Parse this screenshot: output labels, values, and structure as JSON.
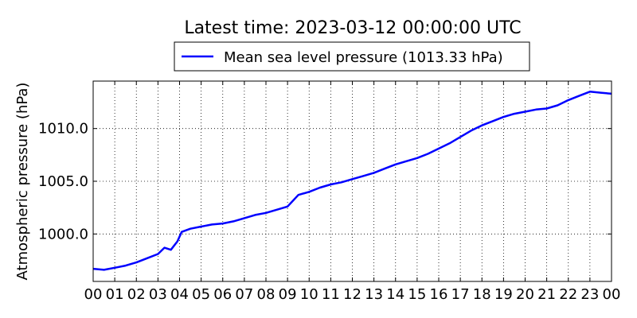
{
  "chart_data": {
    "type": "line",
    "title": "Latest time: 2023-03-12 00:00:00 UTC",
    "ylabel": "Atmospheric pressure (hPa)",
    "xlabel": "",
    "xlim": [
      0,
      24
    ],
    "ylim": [
      995.5,
      1014.5
    ],
    "grid": true,
    "legend_position": "top-center",
    "x_ticks": [
      "00",
      "01",
      "02",
      "03",
      "04",
      "05",
      "06",
      "07",
      "08",
      "09",
      "10",
      "11",
      "12",
      "13",
      "14",
      "15",
      "16",
      "17",
      "18",
      "19",
      "20",
      "21",
      "22",
      "23",
      "00"
    ],
    "y_ticks": [
      "1000.0",
      "1005.0",
      "1010.0"
    ],
    "series": [
      {
        "name": "Mean sea level pressure (1013.33 hPa)",
        "color": "#0000ff",
        "x": [
          0,
          0.5,
          1.0,
          1.5,
          2.0,
          2.5,
          3.0,
          3.3,
          3.6,
          3.9,
          4.1,
          4.5,
          5.0,
          5.5,
          6.0,
          6.5,
          7.0,
          7.5,
          8.0,
          8.5,
          9.0,
          9.5,
          10.0,
          10.5,
          11.0,
          11.5,
          12.0,
          12.5,
          13.0,
          13.5,
          14.0,
          14.5,
          15.0,
          15.5,
          16.0,
          16.5,
          17.0,
          17.5,
          18.0,
          18.5,
          19.0,
          19.5,
          20.0,
          20.5,
          21.0,
          21.5,
          22.0,
          22.5,
          23.0,
          23.5,
          24.0
        ],
        "y": [
          996.7,
          996.6,
          996.8,
          997.0,
          997.3,
          997.7,
          998.1,
          998.7,
          998.5,
          999.3,
          1000.2,
          1000.5,
          1000.7,
          1000.9,
          1001.0,
          1001.2,
          1001.5,
          1001.8,
          1002.0,
          1002.3,
          1002.6,
          1003.7,
          1004.0,
          1004.4,
          1004.7,
          1004.9,
          1005.2,
          1005.5,
          1005.8,
          1006.2,
          1006.6,
          1006.9,
          1007.2,
          1007.6,
          1008.1,
          1008.6,
          1009.2,
          1009.8,
          1010.3,
          1010.7,
          1011.1,
          1011.4,
          1011.6,
          1011.8,
          1011.9,
          1012.2,
          1012.7,
          1013.1,
          1013.5,
          1013.4,
          1013.3
        ]
      }
    ]
  }
}
